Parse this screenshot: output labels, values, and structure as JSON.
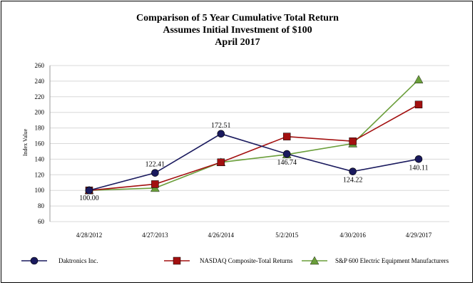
{
  "title_lines": [
    "Comparison of 5 Year Cumulative Total Return",
    "Assumes Initial Investment of $100",
    "April 2017"
  ],
  "colors": {
    "daktronics": "#1a1a5e",
    "nasdaq": "#a31010",
    "sp600": "#6a9e3a",
    "grid": "#d8d8d8"
  },
  "chart_data": {
    "type": "line",
    "title": "Comparison of 5 Year Cumulative Total Return",
    "subtitle": "Assumes Initial Investment of $100 / April 2017",
    "xlabel": "",
    "ylabel": "Index Value",
    "categories": [
      "4/28/2012",
      "4/27/2013",
      "4/26/2014",
      "5/2/2015",
      "4/30/2016",
      "4/29/2017"
    ],
    "ylim": [
      60,
      260
    ],
    "yticks": [
      60,
      80,
      100,
      120,
      140,
      160,
      180,
      200,
      220,
      240,
      260
    ],
    "grid": true,
    "legend_position": "bottom",
    "series": [
      {
        "name": "Daktronics Inc.",
        "marker": "circle",
        "values": [
          100.0,
          122.41,
          172.51,
          146.74,
          124.22,
          140.11
        ],
        "labels": [
          "100.00",
          "122.41",
          "172.51",
          "146.74",
          "124.22",
          "140.11"
        ]
      },
      {
        "name": "NASDAQ Composite-Total Returns",
        "marker": "square",
        "values": [
          100,
          108,
          136,
          169,
          163,
          210
        ]
      },
      {
        "name": "S&P 600 Electric Equipment Manufacturers",
        "marker": "triangle",
        "values": [
          100,
          103,
          136,
          146,
          160,
          242
        ]
      }
    ]
  }
}
